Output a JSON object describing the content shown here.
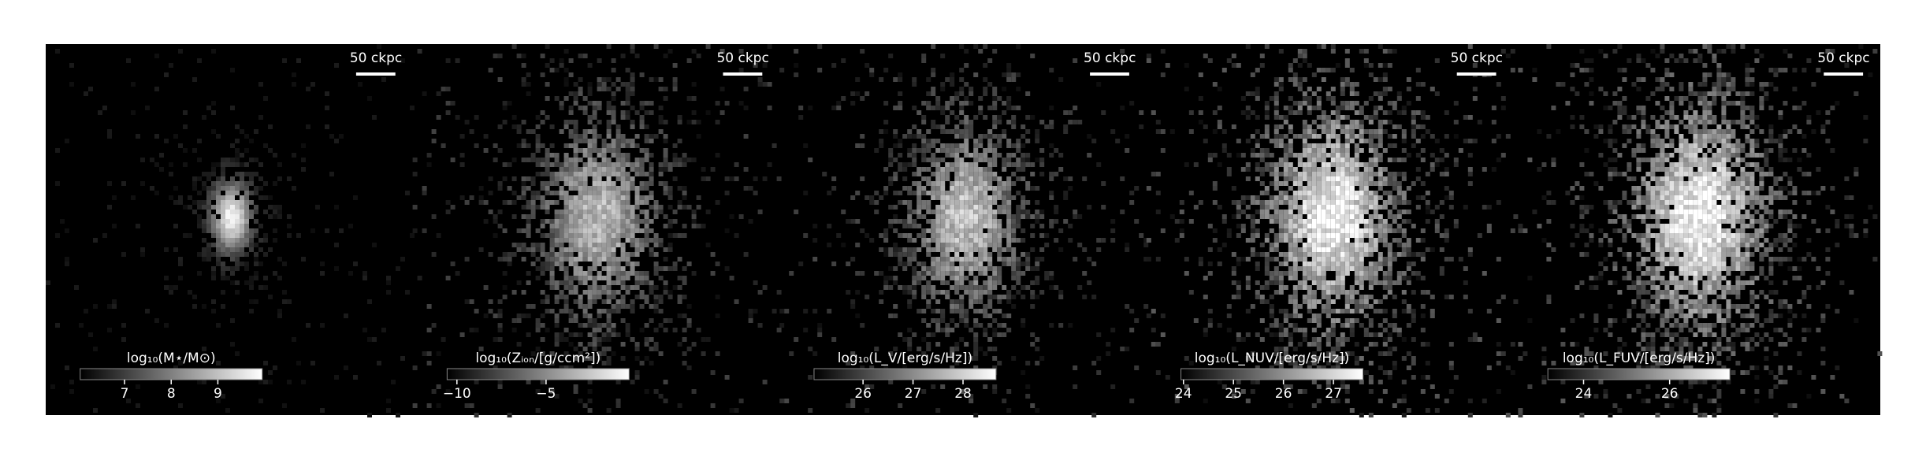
{
  "chart_data": [
    {
      "type": "image",
      "scale_label": "50 ckpc",
      "colorbar_label": "log₁₀(M⋆/M⊙)",
      "clim": [
        6.05,
        9.95
      ],
      "cticks": [
        7,
        8,
        9
      ]
    },
    {
      "type": "image",
      "scale_label": "50 ckpc",
      "colorbar_label": "log₁₀(Zᵢₒₙ/[g/ccm²])",
      "clim": [
        -10.55,
        -0.34
      ],
      "cticks": [
        {
          "value": -10,
          "label": "−10"
        },
        {
          "value": -5,
          "label": "−5"
        }
      ]
    },
    {
      "type": "image",
      "scale_label": "50 ckpc",
      "colorbar_label": "log₁₀(L_V/[erg/s/Hz])",
      "clim": [
        25.02,
        28.66
      ],
      "cticks": [
        26,
        27,
        28
      ]
    },
    {
      "type": "image",
      "scale_label": "50 ckpc",
      "colorbar_label": "log₁₀(L_NUV/[erg/s/Hz])",
      "clim": [
        23.95,
        27.59
      ],
      "cticks": [
        24,
        25,
        26,
        27
      ]
    },
    {
      "type": "image",
      "scale_label": "50 ckpc",
      "colorbar_label": "log₁₀(L_FUV/[erg/s/Hz])",
      "clim": [
        23.17,
        27.4
      ],
      "cticks": [
        24,
        26
      ]
    }
  ]
}
